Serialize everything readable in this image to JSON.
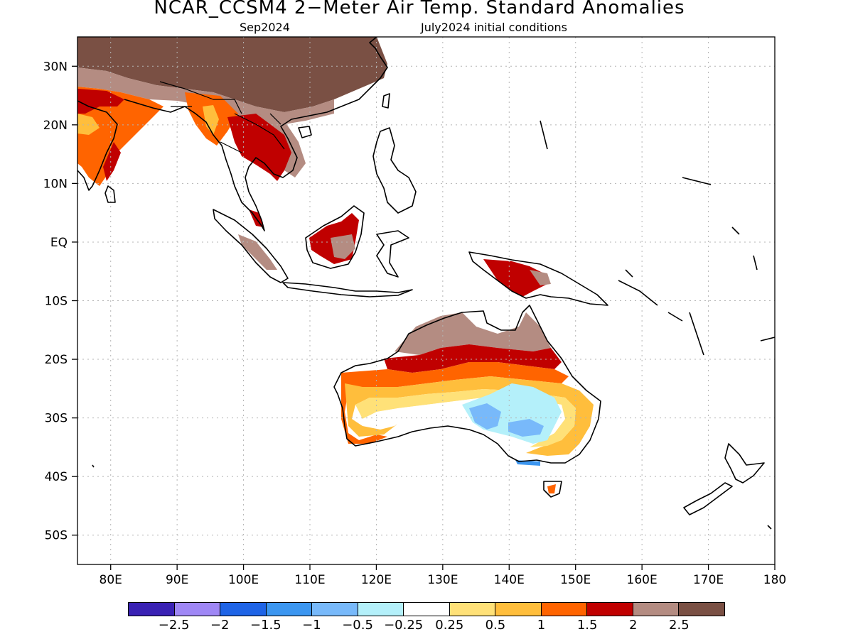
{
  "header": {
    "title": "NCAR_CCSM4 2−Meter Air Temp. Standard Anomalies",
    "target_month": "Sep2024",
    "init_conditions": "July2024 initial conditions"
  },
  "axes": {
    "lat_labels": [
      "30N",
      "20N",
      "10N",
      "EQ",
      "10S",
      "20S",
      "30S",
      "40S",
      "50S"
    ],
    "lon_labels": [
      "80E",
      "90E",
      "100E",
      "110E",
      "120E",
      "130E",
      "140E",
      "150E",
      "160E",
      "170E",
      "180"
    ],
    "lat_values": [
      30,
      20,
      10,
      0,
      -10,
      -20,
      -30,
      -40,
      -50
    ],
    "lon_values": [
      80,
      90,
      100,
      110,
      120,
      130,
      140,
      150,
      160,
      170,
      180
    ],
    "lon_range": [
      75,
      180
    ],
    "lat_range": [
      -55,
      35
    ],
    "grid": "dotted"
  },
  "colorbar": {
    "colors": [
      "#3a22b4",
      "#9f87f5",
      "#1f64e6",
      "#3c96f0",
      "#78b9fa",
      "#b4f0fa",
      "#ffffff",
      "#ffe178",
      "#ffbe3c",
      "#ff6400",
      "#c00000",
      "#b48c82",
      "#7a5044"
    ],
    "labels": [
      "−2.5",
      "−2",
      "−1.5",
      "−1",
      "−0.5",
      "−0.25",
      "0.25",
      "0.5",
      "1",
      "1.5",
      "2",
      "2.5"
    ]
  },
  "colors": {
    "land_outline": "#000000",
    "grid": "#b4b4b4",
    "background": "#ffffff"
  },
  "regions": [
    {
      "name": "Tibet / China",
      "category": "2.5+"
    },
    {
      "name": "India",
      "category": "1 to 2"
    },
    {
      "name": "Indochina",
      "category": "2 to 2.5+"
    },
    {
      "name": "Northern Australia",
      "category": "2 to 2.5"
    },
    {
      "name": "Inland Australia",
      "category": "-0.5 to -1"
    },
    {
      "name": "New Guinea",
      "category": "2 to 2.5"
    }
  ]
}
